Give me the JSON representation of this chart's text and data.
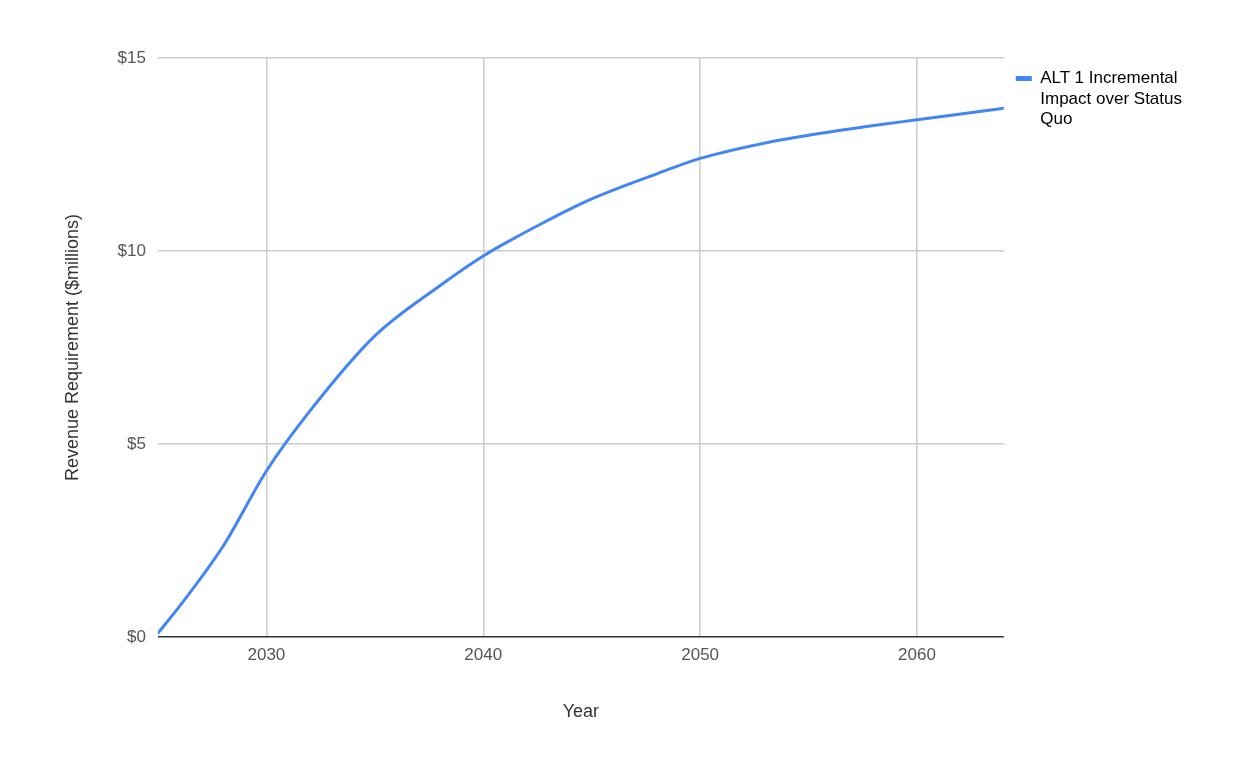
{
  "chart_data": {
    "type": "line",
    "xlabel": "Year",
    "ylabel": "Revenue Requirement ($millions)",
    "xlim": [
      2025,
      2064
    ],
    "xticks": [
      2030,
      2040,
      2050,
      2060
    ],
    "ylim": [
      0,
      15
    ],
    "yticks": [
      {
        "value": 0,
        "label": "$0"
      },
      {
        "value": 5,
        "label": "$5"
      },
      {
        "value": 10,
        "label": "$10"
      },
      {
        "value": 15,
        "label": "$15"
      }
    ],
    "grid": true,
    "legend": "top right",
    "marker": "none",
    "line_style": "solid",
    "series": [
      {
        "name": "ALT 1 Incremental Impact over Status Quo",
        "color": "#4285f4",
        "x": [
          2025,
          2026,
          2028,
          2030,
          2032,
          2035,
          2038,
          2040,
          2043,
          2045,
          2048,
          2050,
          2053,
          2055,
          2058,
          2060,
          2064
        ],
        "values": [
          0.1,
          0.8,
          2.35,
          4.3,
          5.85,
          7.8,
          9.1,
          9.87,
          10.8,
          11.35,
          12.0,
          12.4,
          12.8,
          13.0,
          13.25,
          13.4,
          13.7
        ]
      }
    ]
  }
}
